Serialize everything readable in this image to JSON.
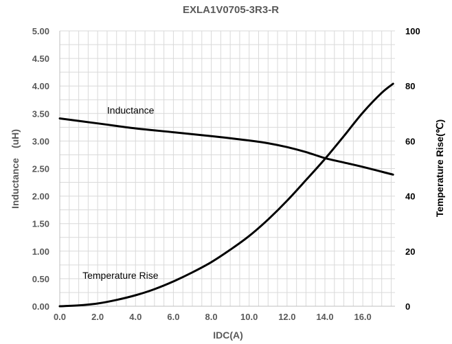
{
  "chart_data": {
    "type": "line",
    "title": "EXLA1V0705-3R3-R",
    "xlabel": "IDC(A)",
    "ylabel": "Inductance　(uH)",
    "y2label": "Temperature Rise(℃)",
    "xlim": [
      0,
      17.7
    ],
    "ylim": [
      0,
      5
    ],
    "y2lim": [
      0,
      100
    ],
    "x_ticks": [
      "0.0",
      "2.0",
      "4.0",
      "6.0",
      "8.0",
      "10.0",
      "12.0",
      "14.0",
      "16.0"
    ],
    "y_ticks": [
      "0.00",
      "0.50",
      "1.00",
      "1.50",
      "2.00",
      "2.50",
      "3.00",
      "3.50",
      "4.00",
      "4.50",
      "5.00"
    ],
    "y2_ticks": [
      "0",
      "20",
      "40",
      "60",
      "80",
      "100"
    ],
    "grid": true,
    "series": [
      {
        "name": "Inductance",
        "axis": "left",
        "x": [
          0,
          2,
          4,
          6,
          8,
          10,
          11,
          12,
          13,
          14,
          15,
          16,
          17.6
        ],
        "y": [
          3.41,
          3.32,
          3.23,
          3.16,
          3.09,
          3.01,
          2.96,
          2.89,
          2.8,
          2.69,
          2.61,
          2.53,
          2.39
        ]
      },
      {
        "name": "Temperature Rise",
        "axis": "right",
        "x": [
          0,
          1,
          2,
          3,
          4,
          5,
          6,
          7,
          8,
          9,
          10,
          11,
          12,
          13,
          14,
          15,
          16,
          17,
          17.6
        ],
        "y": [
          0,
          0.3,
          1,
          2.3,
          4,
          6.2,
          9,
          12.3,
          16,
          20.5,
          25.5,
          31.5,
          38.3,
          45.8,
          53.5,
          61.8,
          70.3,
          77.5,
          80.8
        ]
      }
    ],
    "annotations": [
      {
        "text": "Inductance",
        "x": 2.5,
        "y": 3.5
      },
      {
        "text": "Temperature Rise",
        "x": 1.2,
        "y": 0.5
      }
    ],
    "colors": {
      "line": "#000000",
      "grid": "#d9d9d9",
      "axis": "#bfbfbf"
    }
  }
}
